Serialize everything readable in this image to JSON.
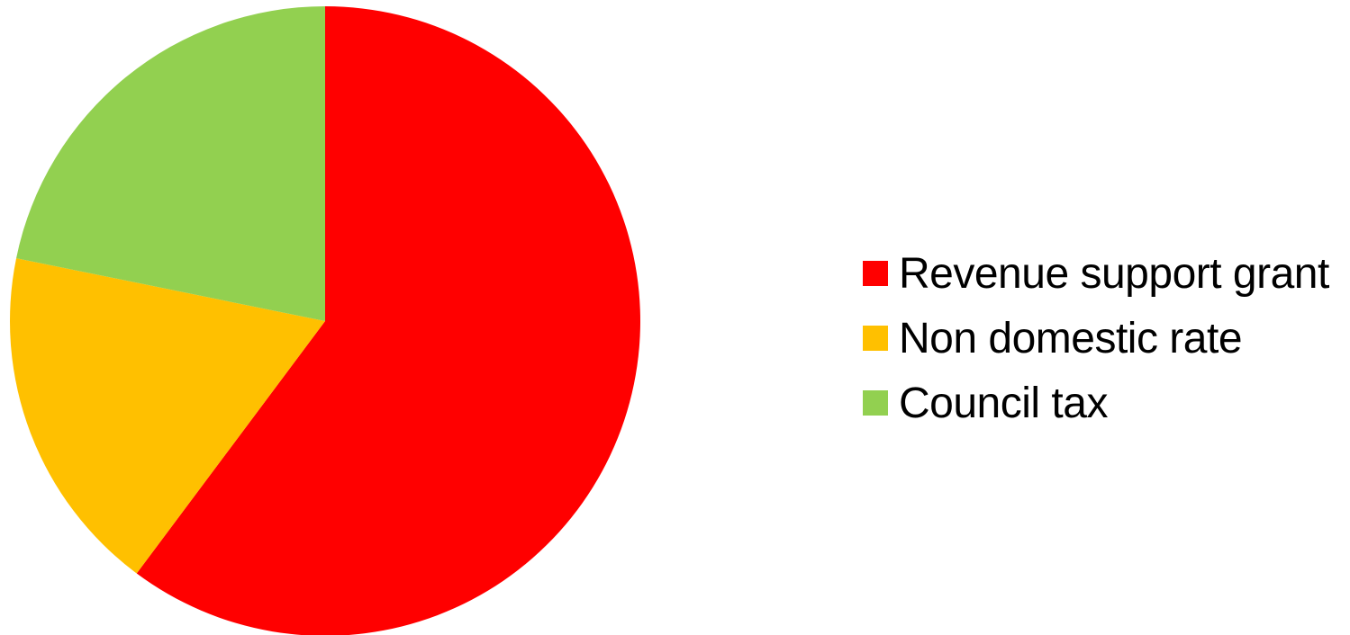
{
  "chart_data": {
    "type": "pie",
    "title": "",
    "start_angle_deg": 0,
    "direction": "clockwise",
    "slices": [
      {
        "label": "Revenue support grant",
        "value": 60.2,
        "color": "#FF0000"
      },
      {
        "label": "Non domestic rate",
        "value": 18.0,
        "color": "#FFC000"
      },
      {
        "label": "Council tax",
        "value": 21.8,
        "color": "#92D050"
      }
    ],
    "legend_position": "right"
  }
}
